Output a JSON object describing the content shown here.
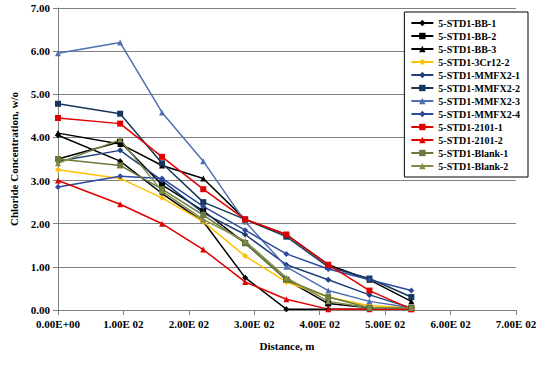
{
  "chart_data": {
    "type": "line",
    "x_label": "Distance, m",
    "y_label": "Chloride Concentration, w/o",
    "x": [
      0,
      95,
      159,
      222,
      286,
      349,
      413,
      476,
      540
    ],
    "xlim": [
      0,
      700
    ],
    "xticks": [
      {
        "value": 0,
        "label": "0.00E+00"
      },
      {
        "value": 100,
        "label": "1.00E 02"
      },
      {
        "value": 200,
        "label": "2.00E 02"
      },
      {
        "value": 300,
        "label": "3.00E 02"
      },
      {
        "value": 400,
        "label": "4.00E 02"
      },
      {
        "value": 500,
        "label": "5.00E 02"
      },
      {
        "value": 600,
        "label": "6.00E 02"
      },
      {
        "value": 700,
        "label": "7.00E 02"
      }
    ],
    "ylim": [
      0,
      7
    ],
    "yticks": [
      {
        "value": 0,
        "label": "0.00"
      },
      {
        "value": 1,
        "label": "1.00"
      },
      {
        "value": 2,
        "label": "2.00"
      },
      {
        "value": 3,
        "label": "3.00"
      },
      {
        "value": 4,
        "label": "4.00"
      },
      {
        "value": 5,
        "label": "5.00"
      },
      {
        "value": 6,
        "label": "6.00"
      },
      {
        "value": 7,
        "label": "7.00"
      }
    ],
    "grid": true,
    "legend": "upper right",
    "series": [
      {
        "name": "5-STD1-BB-1",
        "color": "#000000",
        "marker": "diamond",
        "values": [
          4.05,
          3.45,
          2.7,
          2.05,
          0.75,
          0.02,
          0.02,
          0.02,
          0.02
        ]
      },
      {
        "name": "5-STD1-BB-2",
        "color": "#000000",
        "marker": "square",
        "values": [
          3.5,
          3.9,
          2.9,
          2.3,
          1.55,
          0.7,
          0.15,
          0.05,
          0.05
        ]
      },
      {
        "name": "5-STD1-BB-3",
        "color": "#000000",
        "marker": "triangle",
        "values": [
          4.1,
          3.85,
          3.35,
          3.05,
          2.1,
          1.75,
          1.05,
          0.7,
          0.2
        ]
      },
      {
        "name": "5-STD1-3Cr12-2",
        "color": "#FFC000",
        "marker": "diamond",
        "values": [
          3.25,
          3.05,
          2.6,
          2.05,
          1.25,
          0.65,
          0.3,
          0.1,
          0.05
        ]
      },
      {
        "name": "5-STD1-MMFX2-1",
        "color": "#1F3F7F",
        "marker": "diamond",
        "values": [
          3.45,
          3.7,
          3.0,
          2.25,
          1.75,
          1.05,
          0.7,
          0.35,
          0.05
        ]
      },
      {
        "name": "5-STD1-MMFX2-2",
        "color": "#17365D",
        "marker": "square",
        "values": [
          4.78,
          4.55,
          3.4,
          2.5,
          2.1,
          1.7,
          1.0,
          0.73,
          0.3
        ]
      },
      {
        "name": "5-STD1-MMFX2-3",
        "color": "#4F6FB0",
        "marker": "triangle",
        "values": [
          5.95,
          6.2,
          4.58,
          3.45,
          2.05,
          1.0,
          0.45,
          0.2,
          0.05
        ]
      },
      {
        "name": "5-STD1-MMFX2-4",
        "color": "#2E4A9C",
        "marker": "diamond",
        "values": [
          2.85,
          3.1,
          3.05,
          2.4,
          1.85,
          1.3,
          0.95,
          0.7,
          0.45
        ]
      },
      {
        "name": "5-STD1-2101-1",
        "color": "#E00000",
        "marker": "square",
        "values": [
          4.45,
          4.32,
          3.55,
          2.8,
          2.1,
          1.75,
          1.05,
          0.45,
          0.02
        ]
      },
      {
        "name": "5-STD1-2101-2",
        "color": "#E00000",
        "marker": "triangle",
        "values": [
          3.0,
          2.45,
          2.0,
          1.4,
          0.65,
          0.25,
          0.02,
          0.02,
          0.02
        ]
      },
      {
        "name": "5-STD1-Blank-1",
        "color": "#6B7A3A",
        "marker": "square",
        "values": [
          3.5,
          3.35,
          2.8,
          2.2,
          1.55,
          0.7,
          0.3,
          0.05,
          0.05
        ]
      },
      {
        "name": "5-STD1-Blank-2",
        "color": "#7F8C4A",
        "marker": "triangle",
        "values": [
          3.4,
          3.95,
          2.75,
          2.1,
          1.6,
          0.75,
          0.2,
          0.05,
          0.05
        ]
      }
    ]
  }
}
